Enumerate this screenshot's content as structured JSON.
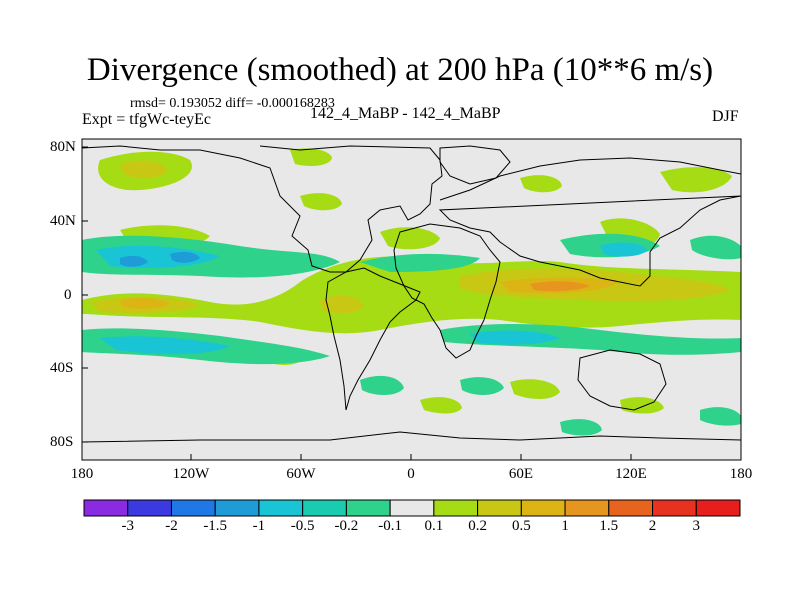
{
  "title": "Divergence (smoothed) at 200 hPa (10**6 m/s)",
  "stats": {
    "text": "rmsd= 0.193052  diff= -0.000168283"
  },
  "experiment": {
    "text": "Expt = tfgWc-teyEc"
  },
  "center_label": "142_4_MaBP - 142_4_MaBP",
  "season": "DJF",
  "lat_labels": [
    "80N",
    "40N",
    "0",
    "40S",
    "80S"
  ],
  "lon_labels": [
    "180",
    "120W",
    "60W",
    "0",
    "60E",
    "120E",
    "180"
  ],
  "colorbar": {
    "labels": [
      "-3",
      "-2",
      "-1.5",
      "-1",
      "-0.5",
      "-0.2",
      "-0.1",
      "0.1",
      "0.2",
      "0.5",
      "1",
      "1.5",
      "2",
      "3"
    ],
    "colors": [
      "#8a2be2",
      "#3a3ae0",
      "#1f78e6",
      "#1e9cd8",
      "#19c4d4",
      "#19ccb0",
      "#2ed28a",
      "#e8e8e8",
      "#a6dc14",
      "#c8c814",
      "#dcb414",
      "#e6961e",
      "#e6641e",
      "#e6321e",
      "#e61e1e"
    ]
  },
  "colors": {
    "background": "#e8e8e8",
    "pos_weak": "#a6dc14",
    "pos_mid": "#c8c814",
    "pos_strong": "#dcb414",
    "pos_max": "#e6961e",
    "neg_weak": "#2ed28a",
    "neg_mid": "#19c4d4",
    "neg_strong": "#1e9cd8"
  }
}
